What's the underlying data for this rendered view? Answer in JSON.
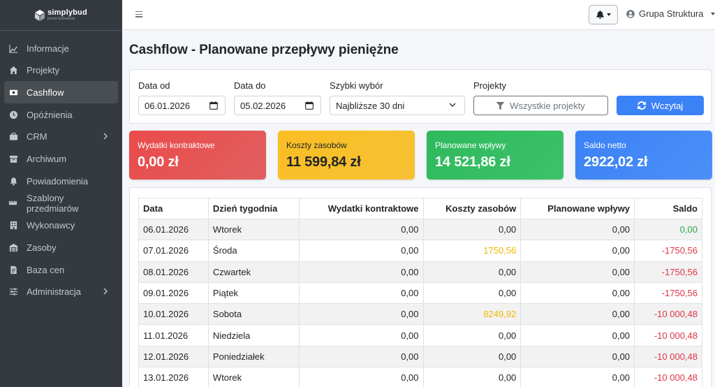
{
  "brand": {
    "name": "simplybud",
    "tagline": "prosto budowanie"
  },
  "sidebar": {
    "items": [
      {
        "label": "Informacje",
        "icon": "chart-line-icon",
        "active": false
      },
      {
        "label": "Projekty",
        "icon": "home-icon",
        "active": false
      },
      {
        "label": "Cashflow",
        "icon": "money-bill-icon",
        "active": true
      },
      {
        "label": "Opóźnienia",
        "icon": "clock-icon",
        "active": false
      },
      {
        "label": "CRM",
        "icon": "briefcase-icon",
        "active": false,
        "has_submenu": true
      },
      {
        "label": "Archiwum",
        "icon": "archive-icon",
        "active": false
      },
      {
        "label": "Powiadomienia",
        "icon": "bell-icon",
        "active": false
      },
      {
        "label": "Szablony przedmiarów",
        "icon": "ruler-icon",
        "active": false
      },
      {
        "label": "Wykonawcy",
        "icon": "building-icon",
        "active": false
      },
      {
        "label": "Zasoby",
        "icon": "warehouse-icon",
        "active": false
      },
      {
        "label": "Baza cen",
        "icon": "file-invoice-icon",
        "active": false
      },
      {
        "label": "Administracja",
        "icon": "sliders-icon",
        "active": false,
        "has_submenu": true
      }
    ]
  },
  "topbar": {
    "user": "Grupa Struktura"
  },
  "page": {
    "title": "Cashflow - Planowane przepływy pieniężne"
  },
  "filters": {
    "date_from_label": "Data od",
    "date_from_value": "06.01.2026",
    "date_to_label": "Data do",
    "date_to_value": "05.02.2026",
    "quick_label": "Szybki wybór",
    "quick_value": "Najbliższe 30 dni",
    "projects_label": "Projekty",
    "projects_button": "Wszystkie projekty",
    "load_button": "Wczytaj"
  },
  "stats": [
    {
      "label": "Wydatki kontraktowe",
      "value": "0,00 zł",
      "color": "#ea4a4a"
    },
    {
      "label": "Koszty zasobów",
      "value": "11 599,84 zł",
      "color": "#fbbf24"
    },
    {
      "label": "Planowane wpływy",
      "value": "14 521,86 zł",
      "color": "#2fb85c"
    },
    {
      "label": "Saldo netto",
      "value": "2922,02 zł",
      "color": "#3b82f6"
    }
  ],
  "table": {
    "headers": [
      "Data",
      "Dzień tygodnia",
      "Wydatki kontraktowe",
      "Koszty zasobów",
      "Planowane wpływy",
      "Saldo"
    ],
    "rows": [
      [
        "06.01.2026",
        "Wtorek",
        "0,00",
        "0,00",
        "0,00",
        "0,00"
      ],
      [
        "07.01.2026",
        "Środa",
        "0,00",
        "1750,56",
        "0,00",
        "-1750,56"
      ],
      [
        "08.01.2026",
        "Czwartek",
        "0,00",
        "0,00",
        "0,00",
        "-1750,56"
      ],
      [
        "09.01.2026",
        "Piątek",
        "0,00",
        "0,00",
        "0,00",
        "-1750,56"
      ],
      [
        "10.01.2026",
        "Sobota",
        "0,00",
        "8249,92",
        "0,00",
        "-10 000,48"
      ],
      [
        "11.01.2026",
        "Niedziela",
        "0,00",
        "0,00",
        "0,00",
        "-10 000,48"
      ],
      [
        "12.01.2026",
        "Poniedziałek",
        "0,00",
        "0,00",
        "0,00",
        "-10 000,48"
      ],
      [
        "13.01.2026",
        "Wtorek",
        "0,00",
        "0,00",
        "0,00",
        "-10 000,48"
      ]
    ]
  },
  "colors": {
    "sidebar": "#343a40",
    "accent": "#3b82f6",
    "warning": "#f0b800",
    "positive": "#28a745",
    "negative": "#dc3545"
  }
}
